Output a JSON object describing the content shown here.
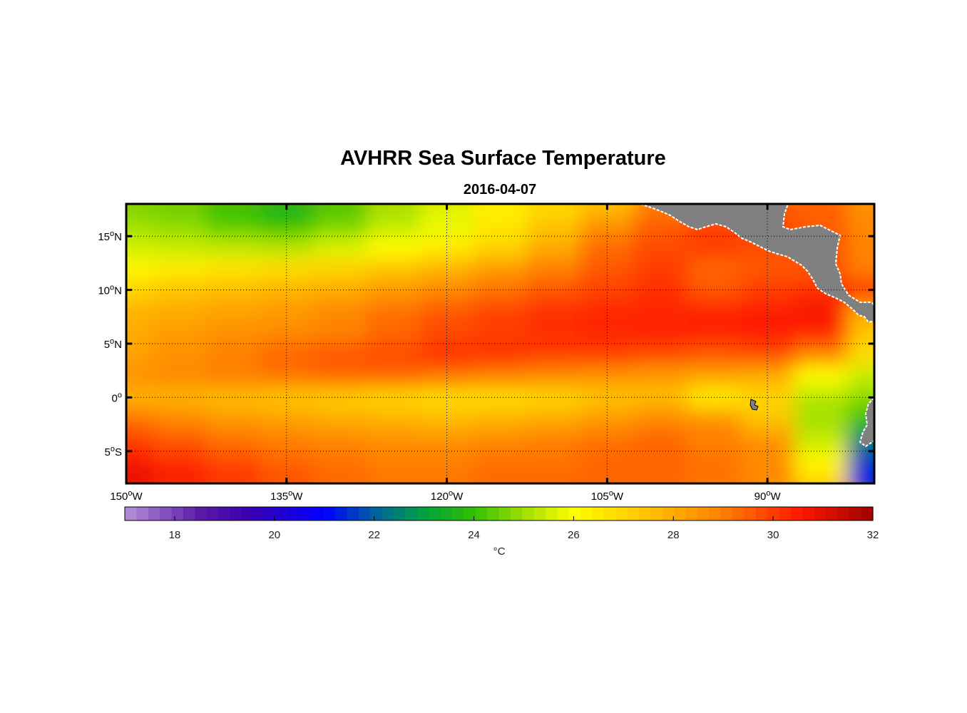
{
  "figure": {
    "title": "AVHRR Sea Surface Temperature",
    "subtitle": "2016-04-07"
  },
  "map": {
    "lon_range": [
      -150,
      -80
    ],
    "lat_range": [
      -8,
      18
    ],
    "lon_ticks": [
      {
        "value": -150,
        "label_num": "150",
        "label_sup": "o",
        "label_suffix": "W"
      },
      {
        "value": -135,
        "label_num": "135",
        "label_sup": "o",
        "label_suffix": "W"
      },
      {
        "value": -120,
        "label_num": "120",
        "label_sup": "o",
        "label_suffix": "W"
      },
      {
        "value": -105,
        "label_num": "105",
        "label_sup": "o",
        "label_suffix": "W"
      },
      {
        "value": -90,
        "label_num": "90",
        "label_sup": "o",
        "label_suffix": "W"
      }
    ],
    "lat_ticks": [
      {
        "value": 15,
        "label_num": "15",
        "label_sup": "o",
        "label_suffix": "N"
      },
      {
        "value": 10,
        "label_num": "10",
        "label_sup": "o",
        "label_suffix": "N"
      },
      {
        "value": 5,
        "label_num": "5",
        "label_sup": "o",
        "label_suffix": "N"
      },
      {
        "value": 0,
        "label_num": "0",
        "label_sup": "o",
        "label_suffix": ""
      },
      {
        "value": -5,
        "label_num": "5",
        "label_sup": "o",
        "label_suffix": "S"
      }
    ],
    "grid": "dotted",
    "land_color": "#808080",
    "coastline_color": "#ffffff"
  },
  "colorbar": {
    "min": 17,
    "max": 32,
    "ticks": [
      18,
      20,
      22,
      24,
      26,
      28,
      30,
      32
    ],
    "unit": "°C",
    "stops": [
      {
        "value": 17,
        "color": "#b591d6"
      },
      {
        "value": 18.5,
        "color": "#5a1aa8"
      },
      {
        "value": 19.5,
        "color": "#3a00b0"
      },
      {
        "value": 21,
        "color": "#0000ff"
      },
      {
        "value": 22,
        "color": "#0060a0"
      },
      {
        "value": 23,
        "color": "#00a040"
      },
      {
        "value": 24,
        "color": "#30c000"
      },
      {
        "value": 25,
        "color": "#a0e000"
      },
      {
        "value": 26,
        "color": "#ffff00"
      },
      {
        "value": 27.5,
        "color": "#ffc000"
      },
      {
        "value": 29,
        "color": "#ff8000"
      },
      {
        "value": 30.5,
        "color": "#ff1a00"
      },
      {
        "value": 32,
        "color": "#a00000"
      }
    ]
  },
  "chart_data": {
    "type": "heatmap",
    "title": "AVHRR Sea Surface Temperature",
    "subtitle": "2016-04-07",
    "xlabel": "",
    "ylabel": "",
    "xlim": [
      -150,
      -80
    ],
    "ylim": [
      -8,
      18
    ],
    "colorbar_label": "°C",
    "colorbar_range": [
      17,
      32
    ],
    "lon": [
      -150,
      -145,
      -140,
      -135,
      -130,
      -125,
      -120,
      -115,
      -110,
      -105,
      -100,
      -95,
      -90,
      -85,
      -80
    ],
    "lat": [
      18,
      16,
      14,
      12,
      10,
      8,
      6,
      4,
      2,
      0,
      -2,
      -4,
      -6,
      -8
    ],
    "sst": [
      [
        24.6,
        24.5,
        24.0,
        23.6,
        24.2,
        25.0,
        25.6,
        26.2,
        26.8,
        27.4,
        29.0,
        null,
        null,
        null,
        28.6
      ],
      [
        25.0,
        24.8,
        24.3,
        24.0,
        24.6,
        25.3,
        25.8,
        26.6,
        27.4,
        28.6,
        29.5,
        30.0,
        null,
        null,
        28.8
      ],
      [
        25.5,
        25.4,
        25.3,
        25.2,
        25.6,
        26.0,
        26.4,
        27.0,
        28.0,
        29.3,
        29.8,
        30.0,
        29.7,
        null,
        28.9
      ],
      [
        26.2,
        26.4,
        26.6,
        26.8,
        27.0,
        27.4,
        27.8,
        28.4,
        29.0,
        29.6,
        30.0,
        29.4,
        29.6,
        null,
        29.0
      ],
      [
        27.0,
        27.4,
        27.6,
        27.8,
        28.0,
        28.4,
        28.8,
        29.2,
        29.6,
        29.9,
        30.2,
        29.6,
        30.0,
        30.2,
        null
      ],
      [
        27.8,
        28.0,
        28.2,
        28.4,
        28.8,
        29.2,
        29.6,
        29.9,
        30.2,
        30.3,
        30.3,
        30.4,
        30.5,
        30.6,
        28.0
      ],
      [
        28.0,
        28.4,
        28.6,
        28.8,
        29.0,
        29.4,
        29.8,
        30.0,
        30.2,
        30.3,
        30.4,
        30.4,
        30.5,
        30.4,
        27.4
      ],
      [
        28.2,
        28.6,
        29.0,
        29.4,
        29.6,
        29.8,
        30.2,
        30.2,
        30.0,
        30.0,
        29.8,
        29.6,
        29.8,
        29.0,
        26.8
      ],
      [
        28.6,
        28.8,
        29.0,
        29.2,
        29.4,
        29.4,
        29.2,
        29.0,
        28.8,
        28.6,
        28.4,
        28.2,
        28.0,
        26.0,
        25.4
      ],
      [
        27.8,
        27.8,
        27.6,
        27.4,
        27.2,
        27.0,
        26.8,
        26.8,
        27.0,
        27.4,
        27.6,
        26.4,
        27.0,
        25.2,
        24.8
      ],
      [
        29.2,
        28.8,
        28.4,
        28.2,
        28.0,
        27.8,
        27.6,
        27.8,
        28.0,
        28.4,
        28.8,
        28.6,
        27.4,
        25.0,
        24.0
      ],
      [
        30.0,
        29.6,
        29.2,
        29.0,
        28.8,
        28.6,
        28.6,
        28.8,
        29.0,
        29.2,
        29.4,
        29.0,
        28.6,
        25.4,
        22.4
      ],
      [
        30.6,
        30.2,
        29.8,
        29.4,
        29.2,
        29.0,
        29.0,
        29.2,
        29.2,
        29.4,
        29.4,
        29.2,
        28.8,
        26.2,
        21.6
      ],
      [
        31.0,
        30.6,
        30.2,
        29.8,
        29.4,
        29.2,
        29.2,
        29.4,
        29.4,
        29.4,
        29.4,
        29.2,
        28.8,
        27.0,
        21.2
      ]
    ]
  }
}
